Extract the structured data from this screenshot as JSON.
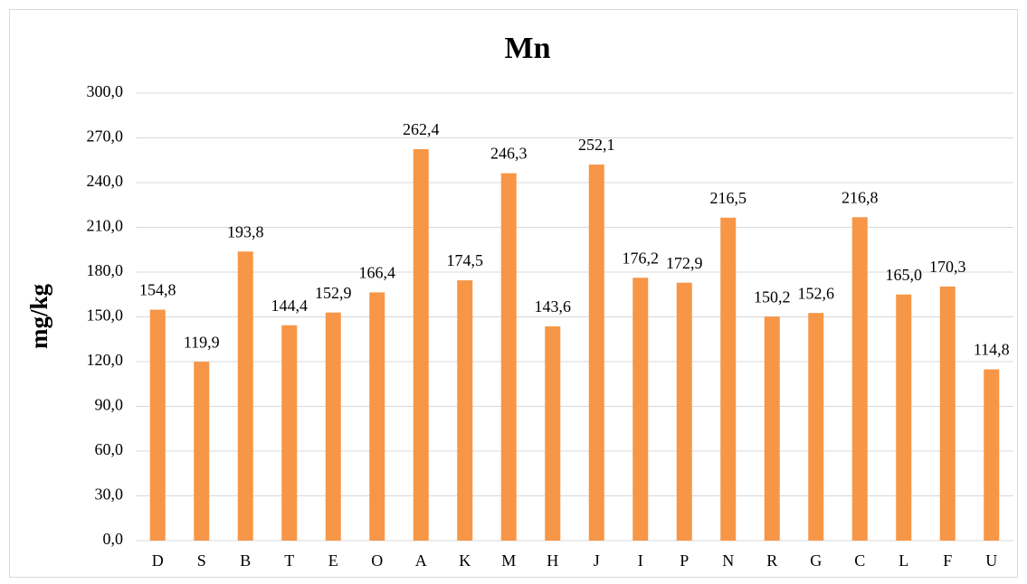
{
  "chart_data": {
    "type": "bar",
    "title": "Mn",
    "y_label": "mg/kg",
    "categories": [
      "D",
      "S",
      "B",
      "T",
      "E",
      "O",
      "A",
      "K",
      "M",
      "H",
      "J",
      "I",
      "P",
      "N",
      "R",
      "G",
      "C",
      "L",
      "F",
      "U"
    ],
    "values": [
      154.8,
      119.9,
      193.8,
      144.4,
      152.9,
      166.4,
      262.4,
      174.5,
      246.3,
      143.6,
      252.1,
      176.2,
      172.9,
      216.5,
      150.2,
      152.6,
      216.8,
      165.0,
      170.3,
      114.8
    ],
    "value_labels": [
      "154,8",
      "119,9",
      "193,8",
      "144,4",
      "152,9",
      "166,4",
      "262,4",
      "174,5",
      "246,3",
      "143,6",
      "252,1",
      "176,2",
      "172,9",
      "216,5",
      "150,2",
      "152,6",
      "216,8",
      "165,0",
      "170,3",
      "114,8"
    ],
    "color": "#f79646",
    "ylim": [
      0,
      300
    ],
    "yticks": [
      {
        "value": 0,
        "label": "0,0"
      },
      {
        "value": 30,
        "label": "30,0"
      },
      {
        "value": 60,
        "label": "60,0"
      },
      {
        "value": 90,
        "label": "90,0"
      },
      {
        "value": 120,
        "label": "120,0"
      },
      {
        "value": 150,
        "label": "150,0"
      },
      {
        "value": 180,
        "label": "180,0"
      },
      {
        "value": 210,
        "label": "210,0"
      },
      {
        "value": 240,
        "label": "240,0"
      },
      {
        "value": 270,
        "label": "270,0"
      },
      {
        "value": 300,
        "label": "300,0"
      }
    ],
    "grid": true
  }
}
